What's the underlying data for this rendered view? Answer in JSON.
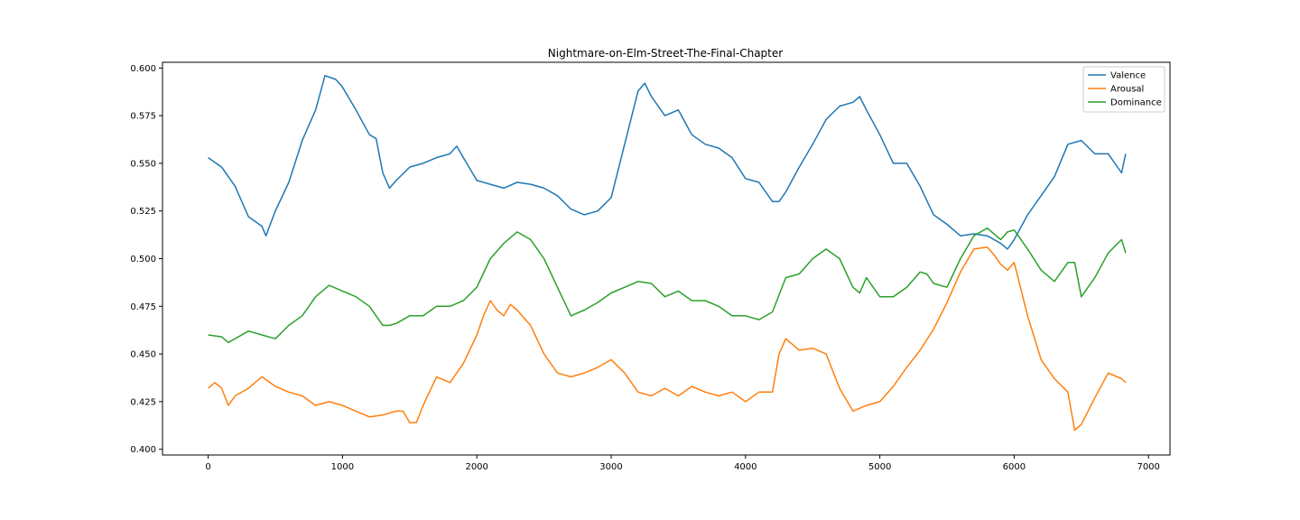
{
  "chart_data": {
    "type": "line",
    "title": "Nightmare-on-Elm-Street-The-Final-Chapter",
    "xlabel": "",
    "ylabel": "",
    "xlim": [
      -340,
      7160
    ],
    "ylim": [
      0.397,
      0.603
    ],
    "xticks": [
      0,
      1000,
      2000,
      3000,
      4000,
      5000,
      6000,
      7000
    ],
    "xtick_labels": [
      "0",
      "1000",
      "2000",
      "3000",
      "4000",
      "5000",
      "6000",
      "7000"
    ],
    "yticks": [
      0.4,
      0.425,
      0.45,
      0.475,
      0.5,
      0.525,
      0.55,
      0.575,
      0.6
    ],
    "ytick_labels": [
      "0.400",
      "0.425",
      "0.450",
      "0.475",
      "0.500",
      "0.525",
      "0.550",
      "0.575",
      "0.600"
    ],
    "grid": false,
    "legend": "top-right",
    "series": [
      {
        "name": "Valence",
        "color": "#1f77b4",
        "x": [
          0,
          100,
          200,
          300,
          400,
          430,
          500,
          600,
          700,
          800,
          870,
          950,
          1000,
          1100,
          1200,
          1250,
          1300,
          1350,
          1400,
          1500,
          1600,
          1700,
          1800,
          1850,
          1900,
          2000,
          2100,
          2200,
          2300,
          2400,
          2500,
          2600,
          2700,
          2800,
          2900,
          3000,
          3100,
          3200,
          3250,
          3300,
          3400,
          3500,
          3600,
          3700,
          3800,
          3900,
          4000,
          4100,
          4200,
          4250,
          4300,
          4400,
          4500,
          4600,
          4700,
          4800,
          4850,
          4900,
          5000,
          5100,
          5200,
          5300,
          5400,
          5500,
          5600,
          5700,
          5800,
          5900,
          5950,
          6000,
          6100,
          6200,
          6300,
          6400,
          6500,
          6600,
          6700,
          6800,
          6830
        ],
        "y": [
          0.553,
          0.548,
          0.538,
          0.522,
          0.517,
          0.512,
          0.525,
          0.54,
          0.562,
          0.578,
          0.596,
          0.594,
          0.59,
          0.578,
          0.565,
          0.563,
          0.545,
          0.537,
          0.541,
          0.548,
          0.55,
          0.553,
          0.555,
          0.559,
          0.553,
          0.541,
          0.539,
          0.537,
          0.54,
          0.539,
          0.537,
          0.533,
          0.526,
          0.523,
          0.525,
          0.532,
          0.56,
          0.588,
          0.592,
          0.585,
          0.575,
          0.578,
          0.565,
          0.56,
          0.558,
          0.553,
          0.542,
          0.54,
          0.53,
          0.53,
          0.535,
          0.548,
          0.56,
          0.573,
          0.58,
          0.582,
          0.585,
          0.578,
          0.565,
          0.55,
          0.55,
          0.538,
          0.523,
          0.518,
          0.512,
          0.513,
          0.512,
          0.508,
          0.505,
          0.51,
          0.523,
          0.533,
          0.543,
          0.56,
          0.562,
          0.555,
          0.555,
          0.545,
          0.555
        ]
      },
      {
        "name": "Arousal",
        "color": "#ff7f0e",
        "x": [
          0,
          50,
          100,
          150,
          200,
          300,
          400,
          500,
          600,
          700,
          800,
          900,
          1000,
          1100,
          1200,
          1300,
          1400,
          1450,
          1500,
          1550,
          1600,
          1700,
          1800,
          1900,
          2000,
          2050,
          2100,
          2150,
          2200,
          2250,
          2300,
          2400,
          2500,
          2600,
          2700,
          2800,
          2900,
          3000,
          3100,
          3200,
          3300,
          3400,
          3500,
          3600,
          3700,
          3800,
          3900,
          4000,
          4100,
          4200,
          4250,
          4300,
          4400,
          4500,
          4600,
          4700,
          4800,
          4900,
          5000,
          5100,
          5200,
          5300,
          5400,
          5500,
          5600,
          5700,
          5800,
          5850,
          5900,
          5950,
          6000,
          6100,
          6200,
          6300,
          6400,
          6450,
          6500,
          6600,
          6700,
          6800,
          6830
        ],
        "y": [
          0.432,
          0.435,
          0.432,
          0.423,
          0.428,
          0.432,
          0.438,
          0.433,
          0.43,
          0.428,
          0.423,
          0.425,
          0.423,
          0.42,
          0.417,
          0.418,
          0.42,
          0.42,
          0.414,
          0.414,
          0.423,
          0.438,
          0.435,
          0.445,
          0.46,
          0.47,
          0.478,
          0.473,
          0.47,
          0.476,
          0.473,
          0.465,
          0.45,
          0.44,
          0.438,
          0.44,
          0.443,
          0.447,
          0.44,
          0.43,
          0.428,
          0.432,
          0.428,
          0.433,
          0.43,
          0.428,
          0.43,
          0.425,
          0.43,
          0.43,
          0.45,
          0.458,
          0.452,
          0.453,
          0.45,
          0.432,
          0.42,
          0.423,
          0.425,
          0.433,
          0.443,
          0.452,
          0.463,
          0.477,
          0.493,
          0.505,
          0.506,
          0.502,
          0.497,
          0.494,
          0.498,
          0.47,
          0.447,
          0.437,
          0.43,
          0.41,
          0.413,
          0.427,
          0.44,
          0.437,
          0.435
        ]
      },
      {
        "name": "Dominance",
        "color": "#2ca02c",
        "x": [
          0,
          100,
          150,
          200,
          300,
          400,
          500,
          600,
          700,
          800,
          900,
          1000,
          1100,
          1200,
          1300,
          1350,
          1400,
          1500,
          1600,
          1700,
          1800,
          1900,
          2000,
          2100,
          2200,
          2300,
          2400,
          2500,
          2600,
          2700,
          2800,
          2900,
          3000,
          3100,
          3200,
          3300,
          3400,
          3500,
          3600,
          3700,
          3800,
          3900,
          4000,
          4100,
          4200,
          4300,
          4400,
          4500,
          4600,
          4700,
          4800,
          4850,
          4900,
          5000,
          5100,
          5200,
          5300,
          5350,
          5400,
          5500,
          5600,
          5700,
          5800,
          5900,
          5950,
          6000,
          6100,
          6200,
          6300,
          6400,
          6450,
          6500,
          6600,
          6700,
          6800,
          6830
        ],
        "y": [
          0.46,
          0.459,
          0.456,
          0.458,
          0.462,
          0.46,
          0.458,
          0.465,
          0.47,
          0.48,
          0.486,
          0.483,
          0.48,
          0.475,
          0.465,
          0.465,
          0.466,
          0.47,
          0.47,
          0.475,
          0.475,
          0.478,
          0.485,
          0.5,
          0.508,
          0.514,
          0.51,
          0.5,
          0.485,
          0.47,
          0.473,
          0.477,
          0.482,
          0.485,
          0.488,
          0.487,
          0.48,
          0.483,
          0.478,
          0.478,
          0.475,
          0.47,
          0.47,
          0.468,
          0.472,
          0.49,
          0.492,
          0.5,
          0.505,
          0.5,
          0.485,
          0.482,
          0.49,
          0.48,
          0.48,
          0.485,
          0.493,
          0.492,
          0.487,
          0.485,
          0.5,
          0.512,
          0.516,
          0.51,
          0.514,
          0.515,
          0.505,
          0.494,
          0.488,
          0.498,
          0.498,
          0.48,
          0.49,
          0.503,
          0.51,
          0.503
        ]
      }
    ]
  }
}
